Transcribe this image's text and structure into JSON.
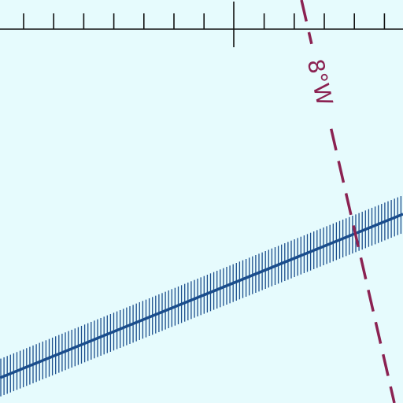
{
  "map": {
    "isogonic_label": "8°W"
  }
}
